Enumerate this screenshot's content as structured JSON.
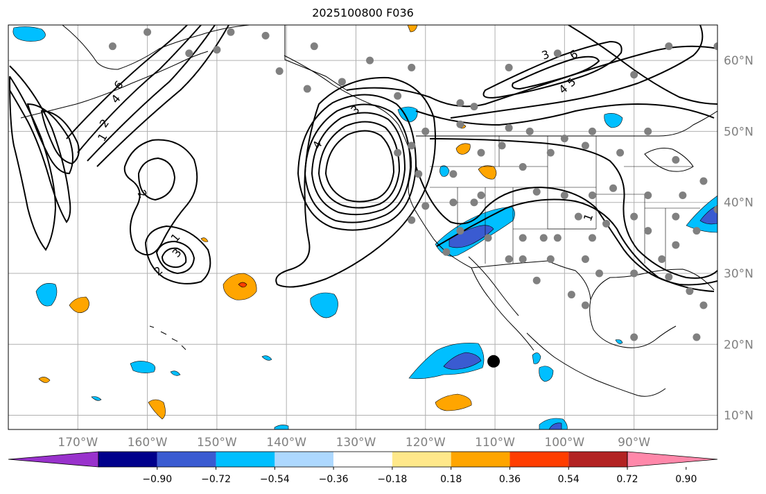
{
  "title": "2025100800 F036",
  "map": {
    "projection": "plate-carree",
    "lon_range": [
      -180,
      -78
    ],
    "lat_range": [
      8,
      65
    ],
    "lon_ticks": [
      {
        "value": -170,
        "label": "170°W"
      },
      {
        "value": -160,
        "label": "160°W"
      },
      {
        "value": -150,
        "label": "150°W"
      },
      {
        "value": -140,
        "label": "140°W"
      },
      {
        "value": -130,
        "label": "130°W"
      },
      {
        "value": -120,
        "label": "120°W"
      },
      {
        "value": -110,
        "label": "110°W"
      },
      {
        "value": -100,
        "label": "100°W"
      },
      {
        "value": -90,
        "label": "90°W"
      }
    ],
    "lat_ticks": [
      {
        "value": 60,
        "label": "60°N"
      },
      {
        "value": 50,
        "label": "50°N"
      },
      {
        "value": 40,
        "label": "40°N"
      },
      {
        "value": 30,
        "label": "30°N"
      },
      {
        "value": 20,
        "label": "20°N"
      },
      {
        "value": 10,
        "label": "10°N"
      }
    ],
    "gridlines": true,
    "contour_labels": [
      "1",
      "2",
      "3",
      "4",
      "5",
      "6"
    ],
    "station_marker_color": "#808080",
    "highlight_marker": {
      "lon": -110.2,
      "lat": 17.6,
      "color": "#000000"
    }
  },
  "colorbar": {
    "colors": [
      "#9932cc",
      "#00008b",
      "#3a5bd1",
      "#00bfff",
      "#add8ff",
      "#ffffff",
      "#ffe88a",
      "#ffa500",
      "#ff3d00",
      "#b22222",
      "#ff88aa"
    ],
    "tick_labels": [
      "−0.90",
      "−0.72",
      "−0.54",
      "−0.36",
      "−0.18",
      "0.18",
      "0.36",
      "0.54",
      "0.72",
      "0.90"
    ],
    "extend": "both"
  }
}
